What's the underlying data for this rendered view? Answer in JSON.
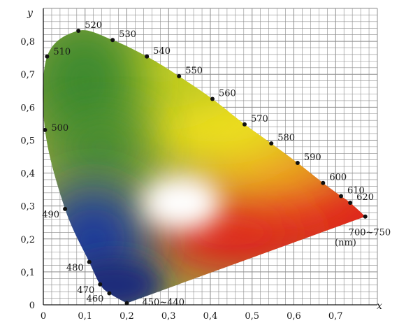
{
  "chart_data": {
    "type": "scatter",
    "title": "",
    "xlabel": "x",
    "ylabel": "y",
    "xlim": [
      0,
      0.8
    ],
    "ylim": [
      0,
      0.9
    ],
    "grid": true,
    "x_ticks": [
      "0",
      "0,1",
      "0,2",
      "0,3",
      "0,4",
      "0,5",
      "0,6",
      "0,7"
    ],
    "y_ticks": [
      "0",
      "0,1",
      "0,2",
      "0,3",
      "0,4",
      "0,5",
      "0,6",
      "0,7",
      "0,8"
    ],
    "x_tick_values": [
      0,
      0.1,
      0.2,
      0.3,
      0.4,
      0.5,
      0.6,
      0.7
    ],
    "y_tick_values": [
      0,
      0.1,
      0.2,
      0.3,
      0.4,
      0.5,
      0.6,
      0.7,
      0.8
    ],
    "points": [
      {
        "label": "450~440",
        "x": 0.2,
        "y": 0.005,
        "side": "right"
      },
      {
        "label": "460",
        "x": 0.158,
        "y": 0.035,
        "side": "left"
      },
      {
        "label": "470",
        "x": 0.136,
        "y": 0.062,
        "side": "left"
      },
      {
        "label": "480",
        "x": 0.11,
        "y": 0.13,
        "side": "left"
      },
      {
        "label": "490",
        "x": 0.052,
        "y": 0.291,
        "side": "left"
      },
      {
        "label": "500",
        "x": 0.004,
        "y": 0.531,
        "side": "right"
      },
      {
        "label": "510",
        "x": 0.009,
        "y": 0.754,
        "side": "right"
      },
      {
        "label": "520",
        "x": 0.084,
        "y": 0.832,
        "side": "right"
      },
      {
        "label": "530",
        "x": 0.166,
        "y": 0.804,
        "side": "right"
      },
      {
        "label": "540",
        "x": 0.248,
        "y": 0.754,
        "side": "right"
      },
      {
        "label": "550",
        "x": 0.325,
        "y": 0.694,
        "side": "right"
      },
      {
        "label": "560",
        "x": 0.405,
        "y": 0.625,
        "side": "right"
      },
      {
        "label": "570",
        "x": 0.482,
        "y": 0.548,
        "side": "right"
      },
      {
        "label": "580",
        "x": 0.546,
        "y": 0.49,
        "side": "right"
      },
      {
        "label": "590",
        "x": 0.609,
        "y": 0.431,
        "side": "right"
      },
      {
        "label": "600",
        "x": 0.67,
        "y": 0.37,
        "side": "right"
      },
      {
        "label": "610",
        "x": 0.713,
        "y": 0.33,
        "side": "right"
      },
      {
        "label": "620",
        "x": 0.735,
        "y": 0.31,
        "side": "right"
      },
      {
        "label": "700~750",
        "x": 0.771,
        "y": 0.268,
        "side": "below"
      }
    ],
    "unit_label": "(nm)",
    "colors": {
      "green": "#3d8a2e",
      "yellow_green": "#c8d21e",
      "yellow": "#f0e01a",
      "orange": "#f0a020",
      "red": "#e0201c",
      "blue": "#1c3a9a",
      "deep_blue": "#1a2a7a",
      "white": "#ffffff",
      "grid": "#8c8c8c"
    }
  }
}
